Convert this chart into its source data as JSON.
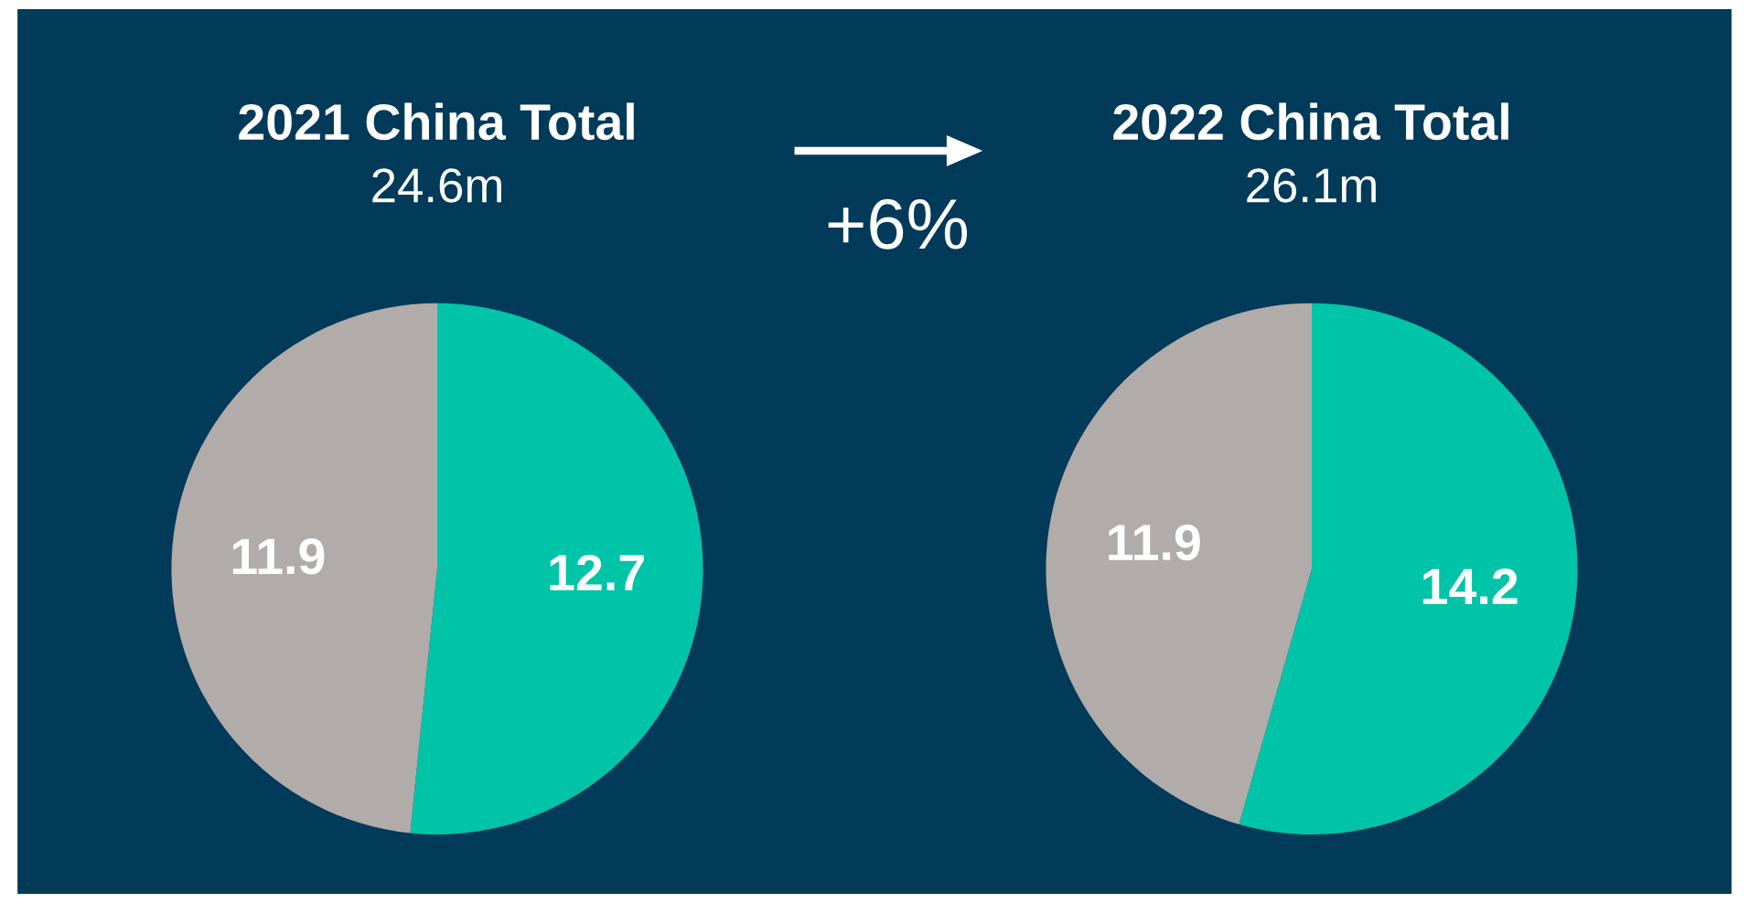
{
  "chart_data": [
    {
      "type": "pie",
      "title": "2021 China Total",
      "subtitle": "24.6m",
      "categories": [
        null,
        null
      ],
      "values": [
        12.7,
        11.9
      ],
      "colors": [
        "#00c4a8",
        "#b1abaa"
      ],
      "data_labels": true,
      "annotations": [
        "+6%"
      ]
    },
    {
      "type": "pie",
      "title": "2022 China Total",
      "subtitle": "26.1m",
      "categories": [
        null,
        null
      ],
      "values": [
        14.2,
        11.9
      ],
      "colors": [
        "#00c4a8",
        "#b1abaa"
      ],
      "data_labels": true
    }
  ]
}
